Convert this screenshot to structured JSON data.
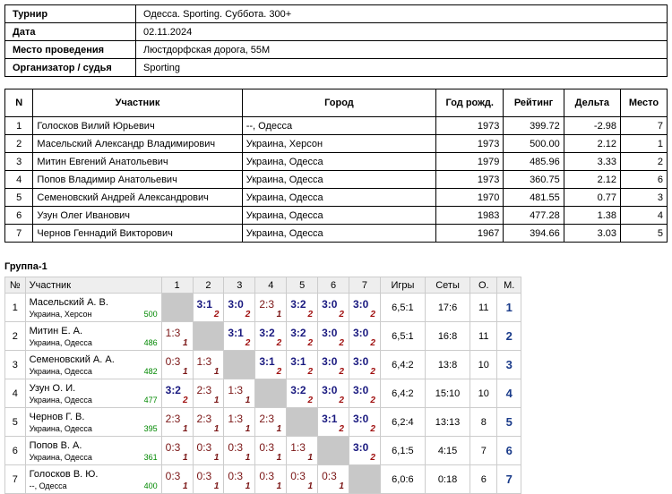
{
  "info": [
    {
      "key": "Турнир",
      "value": "Одесса. Sporting. Суббота. 300+"
    },
    {
      "key": "Дата",
      "value": "02.11.2024"
    },
    {
      "key": "Место проведения",
      "value": "Люстдорфская дорога, 55М"
    },
    {
      "key": "Организатор / судья",
      "value": "Sporting"
    }
  ],
  "participants": {
    "headers": [
      "N",
      "Участник",
      "Город",
      "Год рожд.",
      "Рейтинг",
      "Дельта",
      "Место"
    ],
    "rows": [
      [
        "1",
        "Голосков Вилий Юрьевич",
        "--, Одесса",
        "1973",
        "399.72",
        "-2.98",
        "7"
      ],
      [
        "2",
        "Масельский Александр Владимирович",
        "Украина, Херсон",
        "1973",
        "500.00",
        "2.12",
        "1"
      ],
      [
        "3",
        "Митин Евгений Анатольевич",
        "Украина, Одесса",
        "1979",
        "485.96",
        "3.33",
        "2"
      ],
      [
        "4",
        "Попов Владимир Анатольевич",
        "Украина, Одесса",
        "1973",
        "360.75",
        "2.12",
        "6"
      ],
      [
        "5",
        "Семеновский Андрей Александрович",
        "Украина, Одесса",
        "1970",
        "481.55",
        "0.77",
        "3"
      ],
      [
        "6",
        "Узун Олег Иванович",
        "Украина, Одесса",
        "1983",
        "477.28",
        "1.38",
        "4"
      ],
      [
        "7",
        "Чернов Геннадий Викторович",
        "Украина, Одесса",
        "1967",
        "394.66",
        "3.03",
        "5"
      ]
    ]
  },
  "group": {
    "title": "Группа-1",
    "headers": [
      "№",
      "Участник",
      "1",
      "2",
      "3",
      "4",
      "5",
      "6",
      "7",
      "Игры",
      "Сеты",
      "О.",
      "М."
    ],
    "rows": [
      {
        "n": "1",
        "name": "Масельский А. В.",
        "city": "Украина, Херсон",
        "rating": "500",
        "cells": [
          null,
          [
            "3:1",
            "2",
            "w"
          ],
          [
            "3:0",
            "2",
            "w"
          ],
          [
            "2:3",
            "1",
            "l"
          ],
          [
            "3:2",
            "2",
            "w"
          ],
          [
            "3:0",
            "2",
            "w"
          ],
          [
            "3:0",
            "2",
            "w"
          ]
        ],
        "games": "6,5:1",
        "sets": "17:6",
        "points": "11",
        "place": "1"
      },
      {
        "n": "2",
        "name": "Митин Е. А.",
        "city": "Украина, Одесса",
        "rating": "486",
        "cells": [
          [
            "1:3",
            "1",
            "l"
          ],
          null,
          [
            "3:1",
            "2",
            "w"
          ],
          [
            "3:2",
            "2",
            "w"
          ],
          [
            "3:2",
            "2",
            "w"
          ],
          [
            "3:0",
            "2",
            "w"
          ],
          [
            "3:0",
            "2",
            "w"
          ]
        ],
        "games": "6,5:1",
        "sets": "16:8",
        "points": "11",
        "place": "2"
      },
      {
        "n": "3",
        "name": "Семеновский А. А.",
        "city": "Украина, Одесса",
        "rating": "482",
        "cells": [
          [
            "0:3",
            "1",
            "l"
          ],
          [
            "1:3",
            "1",
            "l"
          ],
          null,
          [
            "3:1",
            "2",
            "w"
          ],
          [
            "3:1",
            "2",
            "w"
          ],
          [
            "3:0",
            "2",
            "w"
          ],
          [
            "3:0",
            "2",
            "w"
          ]
        ],
        "games": "6,4:2",
        "sets": "13:8",
        "points": "10",
        "place": "3"
      },
      {
        "n": "4",
        "name": "Узун О. И.",
        "city": "Украина, Одесса",
        "rating": "477",
        "cells": [
          [
            "3:2",
            "2",
            "w"
          ],
          [
            "2:3",
            "1",
            "l"
          ],
          [
            "1:3",
            "1",
            "l"
          ],
          null,
          [
            "3:2",
            "2",
            "w"
          ],
          [
            "3:0",
            "2",
            "w"
          ],
          [
            "3:0",
            "2",
            "w"
          ]
        ],
        "games": "6,4:2",
        "sets": "15:10",
        "points": "10",
        "place": "4"
      },
      {
        "n": "5",
        "name": "Чернов Г. В.",
        "city": "Украина, Одесса",
        "rating": "395",
        "cells": [
          [
            "2:3",
            "1",
            "l"
          ],
          [
            "2:3",
            "1",
            "l"
          ],
          [
            "1:3",
            "1",
            "l"
          ],
          [
            "2:3",
            "1",
            "l"
          ],
          null,
          [
            "3:1",
            "2",
            "w"
          ],
          [
            "3:0",
            "2",
            "w"
          ]
        ],
        "games": "6,2:4",
        "sets": "13:13",
        "points": "8",
        "place": "5"
      },
      {
        "n": "6",
        "name": "Попов В. А.",
        "city": "Украина, Одесса",
        "rating": "361",
        "cells": [
          [
            "0:3",
            "1",
            "l"
          ],
          [
            "0:3",
            "1",
            "l"
          ],
          [
            "0:3",
            "1",
            "l"
          ],
          [
            "0:3",
            "1",
            "l"
          ],
          [
            "1:3",
            "1",
            "l"
          ],
          null,
          [
            "3:0",
            "2",
            "w"
          ]
        ],
        "games": "6,1:5",
        "sets": "4:15",
        "points": "7",
        "place": "6"
      },
      {
        "n": "7",
        "name": "Голосков В. Ю.",
        "city": "--, Одесса",
        "rating": "400",
        "cells": [
          [
            "0:3",
            "1",
            "l"
          ],
          [
            "0:3",
            "1",
            "l"
          ],
          [
            "0:3",
            "1",
            "l"
          ],
          [
            "0:3",
            "1",
            "l"
          ],
          [
            "0:3",
            "1",
            "l"
          ],
          [
            "0:3",
            "1",
            "l"
          ],
          null
        ],
        "games": "6,0:6",
        "sets": "0:18",
        "points": "6",
        "place": "7"
      }
    ]
  }
}
